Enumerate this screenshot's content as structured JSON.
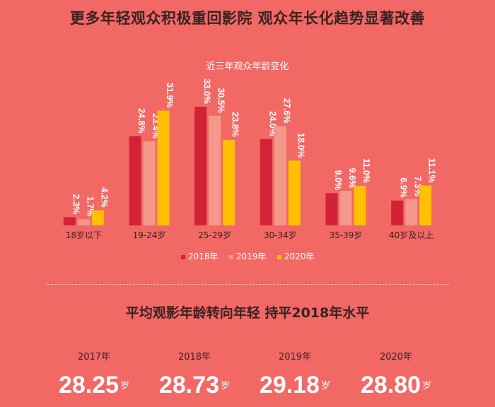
{
  "header": {
    "title": "更多年轻观众积极重回影院 观众年长化趋势显著改善",
    "chart_subtitle": "近三年观众年龄变化"
  },
  "chart_data": {
    "type": "bar",
    "title": "近三年观众年龄变化",
    "categories": [
      "18岁以下",
      "19-24岁",
      "25-29岁",
      "30-34岁",
      "35-39岁",
      "40岁及以上"
    ],
    "series": [
      {
        "name": "2018年",
        "values": [
          2.3,
          24.8,
          33.0,
          24.0,
          9.0,
          6.9
        ],
        "color": "#d32235"
      },
      {
        "name": "2019年",
        "values": [
          1.7,
          23.4,
          30.5,
          27.6,
          9.6,
          7.3
        ],
        "color": "#f6978b"
      },
      {
        "name": "2020年",
        "values": [
          4.2,
          31.9,
          23.8,
          18.0,
          11.0,
          11.1
        ],
        "color": "#ffc000"
      }
    ],
    "value_unit": "%",
    "ylim": [
      0,
      35
    ],
    "grid": true,
    "legend": "bottom"
  },
  "section2": {
    "title": "平均观影年龄转向年轻 持平2018年水平",
    "unit": "岁",
    "items": [
      {
        "year": "2017年",
        "value": "28.25"
      },
      {
        "year": "2018年",
        "value": "28.73"
      },
      {
        "year": "2019年",
        "value": "29.18"
      },
      {
        "year": "2020年",
        "value": "28.80"
      }
    ]
  },
  "colors": {
    "background": "#f26865",
    "gridline": "#e96e68",
    "text_dark": "#3a2222"
  }
}
